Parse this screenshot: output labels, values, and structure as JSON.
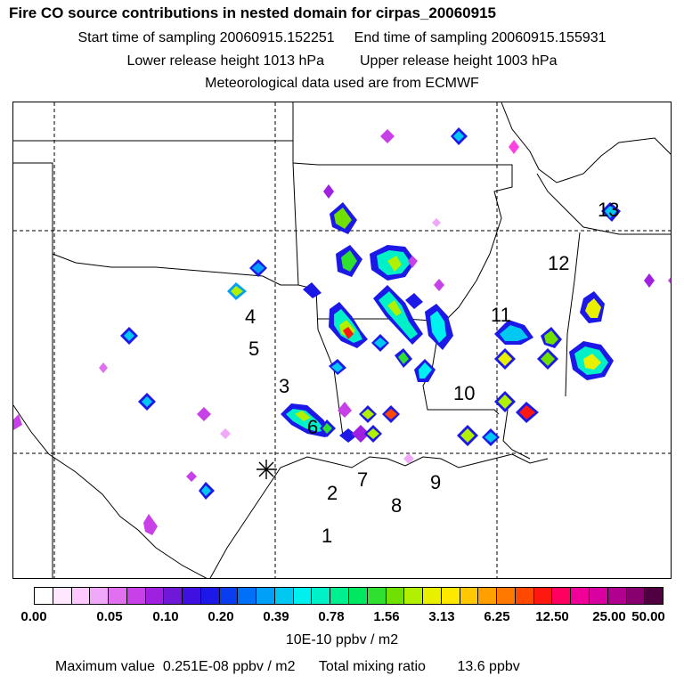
{
  "header": {
    "title": "Fire CO source contributions in nested domain for cirpas_20060915",
    "start_time": "Start time of sampling 20060915.152251",
    "end_time": "End time of sampling 20060915.155931",
    "lower_height": "Lower release height 1013 hPa",
    "upper_height": "Upper release height 1003 hPa",
    "met_data": "Meteorological data used are from ECMWF"
  },
  "map": {
    "labels": [
      "1",
      "2",
      "3",
      "4",
      "5",
      "6",
      "7",
      "8",
      "9",
      "10",
      "11",
      "12",
      "13"
    ]
  },
  "legend": {
    "ticks": [
      "0.00",
      "0.05",
      "0.10",
      "0.20",
      "0.39",
      "0.78",
      "1.56",
      "3.13",
      "6.25",
      "12.50",
      "25.00",
      "50.00"
    ],
    "colors": [
      "#ffffff",
      "#ffe8ff",
      "#ffc8ff",
      "#f0a8f8",
      "#e070f0",
      "#c840e8",
      "#a020e0",
      "#7018d8",
      "#4010e0",
      "#1c18e8",
      "#0a3cf0",
      "#0070f8",
      "#00a0f8",
      "#00c8f0",
      "#00f0f0",
      "#00f0c8",
      "#00f090",
      "#00e860",
      "#30e030",
      "#70e000",
      "#b0f000",
      "#e8f000",
      "#ffe800",
      "#ffc800",
      "#ffa000",
      "#ff7800",
      "#ff4800",
      "#ff1810",
      "#ff0060",
      "#f00098",
      "#d800a0",
      "#b00090",
      "#880070",
      "#500040"
    ],
    "units": "10E-10 ppbv / m2"
  },
  "footer": {
    "max_label": "Maximum value",
    "max_value": "0.251E-08 ppbv / m2",
    "total_label": "Total mixing ratio",
    "total_value": "13.6 ppbv"
  }
}
